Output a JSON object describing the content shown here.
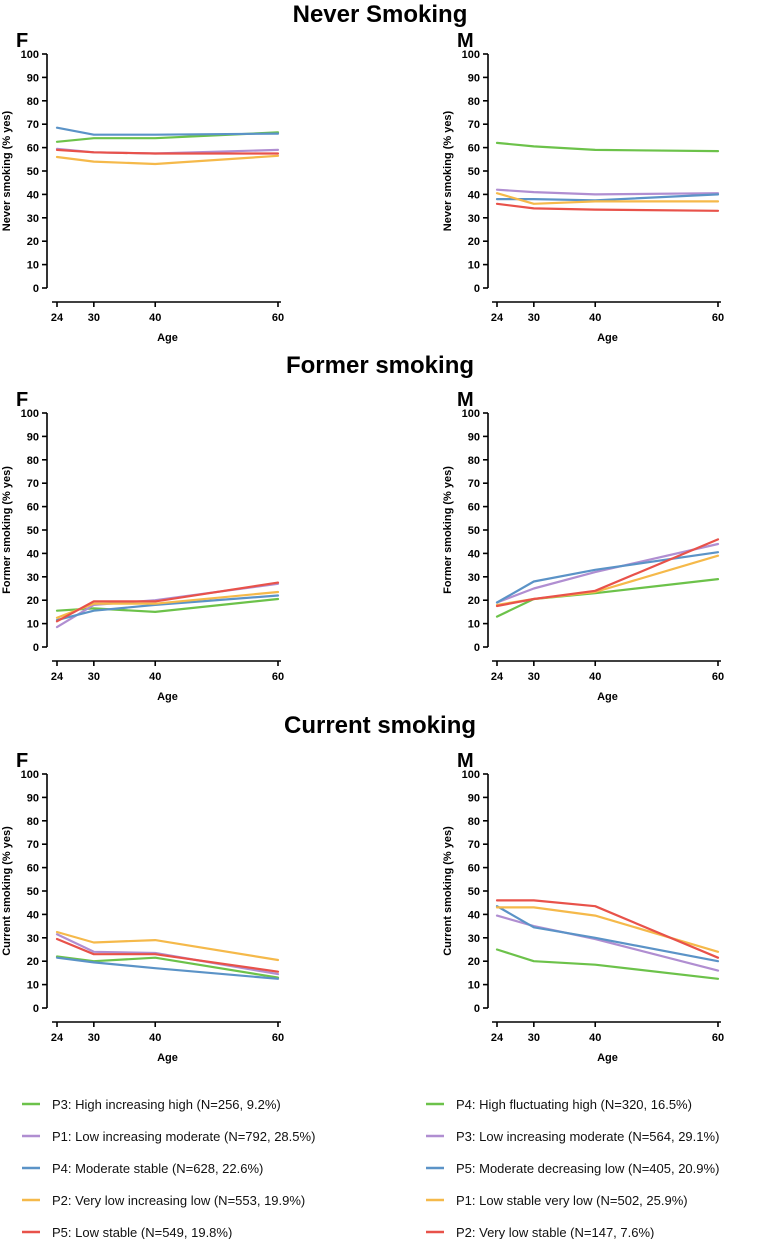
{
  "colors": {
    "green": "#6cc24a",
    "purple": "#b08ed1",
    "blue": "#5b93c7",
    "orange": "#f5b94a",
    "red": "#e8524a"
  },
  "sections": [
    {
      "title": "Never Smoking"
    },
    {
      "title": "Former smoking"
    },
    {
      "title": "Current smoking"
    }
  ],
  "legend": {
    "F": [
      {
        "label": "P3: High increasing high (N=256, 9.2%)",
        "color": "green"
      },
      {
        "label": "P1: Low increasing moderate (N=792, 28.5%)",
        "color": "purple"
      },
      {
        "label": "P4: Moderate stable (N=628, 22.6%)",
        "color": "blue"
      },
      {
        "label": "P2: Very low increasing low (N=553, 19.9%)",
        "color": "orange"
      },
      {
        "label": "P5: Low stable (N=549, 19.8%)",
        "color": "red"
      }
    ],
    "M": [
      {
        "label": "P4: High fluctuating high (N=320, 16.5%)",
        "color": "green"
      },
      {
        "label": "P3: Low increasing moderate (N=564, 29.1%)",
        "color": "purple"
      },
      {
        "label": "P5: Moderate decreasing low (N=405, 20.9%)",
        "color": "blue"
      },
      {
        "label": "P1: Low stable very low (N=502, 25.9%)",
        "color": "orange"
      },
      {
        "label": "P2: Very low stable (N=147, 7.6%)",
        "color": "red"
      }
    ]
  },
  "chart_data": [
    {
      "type": "line",
      "section": "Never Smoking",
      "panel": "F",
      "x": [
        24,
        30,
        40,
        60
      ],
      "xlabel": "Age",
      "ylabel": "Never smoking (% yes)",
      "xticks": [
        24,
        30,
        40,
        60
      ],
      "ylim": [
        0,
        100
      ],
      "yticks": [
        0,
        10,
        20,
        30,
        40,
        50,
        60,
        70,
        80,
        90,
        100
      ],
      "series": [
        {
          "color": "green",
          "values": [
            62.5,
            64,
            64,
            66.5
          ]
        },
        {
          "color": "purple",
          "values": [
            59.5,
            58,
            57.5,
            59
          ]
        },
        {
          "color": "blue",
          "values": [
            68.5,
            65.5,
            65.5,
            66
          ]
        },
        {
          "color": "orange",
          "values": [
            56,
            54,
            53,
            56.5
          ]
        },
        {
          "color": "red",
          "values": [
            59,
            58,
            57.5,
            57.5
          ]
        }
      ]
    },
    {
      "type": "line",
      "section": "Never Smoking",
      "panel": "M",
      "x": [
        24,
        30,
        40,
        60
      ],
      "xlabel": "Age",
      "ylabel": "Never smoking (% yes)",
      "xticks": [
        24,
        30,
        40,
        60
      ],
      "ylim": [
        0,
        100
      ],
      "yticks": [
        0,
        10,
        20,
        30,
        40,
        50,
        60,
        70,
        80,
        90,
        100
      ],
      "series": [
        {
          "color": "green",
          "values": [
            62,
            60.5,
            59,
            58.5
          ]
        },
        {
          "color": "purple",
          "values": [
            42,
            41,
            40,
            40.5
          ]
        },
        {
          "color": "blue",
          "values": [
            38,
            38,
            37.5,
            40
          ]
        },
        {
          "color": "orange",
          "values": [
            40.5,
            36,
            37,
            37
          ]
        },
        {
          "color": "red",
          "values": [
            36,
            34,
            33.5,
            33
          ]
        }
      ]
    },
    {
      "type": "line",
      "section": "Former smoking",
      "panel": "F",
      "x": [
        24,
        30,
        40,
        60
      ],
      "xlabel": "Age",
      "ylabel": "Former smoking (% yes)",
      "xticks": [
        24,
        30,
        40,
        60
      ],
      "ylim": [
        0,
        100
      ],
      "yticks": [
        0,
        10,
        20,
        30,
        40,
        50,
        60,
        70,
        80,
        90,
        100
      ],
      "series": [
        {
          "color": "green",
          "values": [
            15.5,
            16.5,
            15,
            20.5
          ]
        },
        {
          "color": "purple",
          "values": [
            8.5,
            18,
            20,
            27
          ]
        },
        {
          "color": "blue",
          "values": [
            11.5,
            15.5,
            18,
            22
          ]
        },
        {
          "color": "orange",
          "values": [
            12.5,
            18.5,
            18.5,
            23.5
          ]
        },
        {
          "color": "red",
          "values": [
            11,
            19.5,
            19.5,
            27.5
          ]
        }
      ]
    },
    {
      "type": "line",
      "section": "Former smoking",
      "panel": "M",
      "x": [
        24,
        30,
        40,
        60
      ],
      "xlabel": "Age",
      "ylabel": "Former smoking (% yes)",
      "xticks": [
        24,
        30,
        40,
        60
      ],
      "ylim": [
        0,
        100
      ],
      "yticks": [
        0,
        10,
        20,
        30,
        40,
        50,
        60,
        70,
        80,
        90,
        100
      ],
      "series": [
        {
          "color": "green",
          "values": [
            13,
            20.5,
            23,
            29
          ]
        },
        {
          "color": "purple",
          "values": [
            19,
            25,
            32,
            44
          ]
        },
        {
          "color": "blue",
          "values": [
            19,
            28,
            33,
            40.5
          ]
        },
        {
          "color": "orange",
          "values": [
            18,
            20.5,
            23.5,
            39
          ]
        },
        {
          "color": "red",
          "values": [
            17.5,
            20.5,
            24,
            46
          ]
        }
      ]
    },
    {
      "type": "line",
      "section": "Current smoking",
      "panel": "F",
      "x": [
        24,
        30,
        40,
        60
      ],
      "xlabel": "Age",
      "ylabel": "Current smoking (% yes)",
      "xticks": [
        24,
        30,
        40,
        60
      ],
      "ylim": [
        0,
        100
      ],
      "yticks": [
        0,
        10,
        20,
        30,
        40,
        50,
        60,
        70,
        80,
        90,
        100
      ],
      "series": [
        {
          "color": "green",
          "values": [
            22,
            20,
            21.5,
            13
          ]
        },
        {
          "color": "purple",
          "values": [
            31.5,
            24,
            23.5,
            14.5
          ]
        },
        {
          "color": "blue",
          "values": [
            21.5,
            19.5,
            17,
            12.5
          ]
        },
        {
          "color": "orange",
          "values": [
            32.5,
            28,
            29,
            20.5
          ]
        },
        {
          "color": "red",
          "values": [
            29.5,
            23,
            23,
            15.5
          ]
        }
      ]
    },
    {
      "type": "line",
      "section": "Current smoking",
      "panel": "M",
      "x": [
        24,
        30,
        40,
        60
      ],
      "xlabel": "Age",
      "ylabel": "Current smoking (% yes)",
      "xticks": [
        24,
        30,
        40,
        60
      ],
      "ylim": [
        0,
        100
      ],
      "yticks": [
        0,
        10,
        20,
        30,
        40,
        50,
        60,
        70,
        80,
        90,
        100
      ],
      "series": [
        {
          "color": "green",
          "values": [
            25,
            20,
            18.5,
            12.5
          ]
        },
        {
          "color": "purple",
          "values": [
            39.5,
            35,
            29.5,
            16
          ]
        },
        {
          "color": "blue",
          "values": [
            43.5,
            34.5,
            30,
            20
          ]
        },
        {
          "color": "orange",
          "values": [
            43,
            43,
            39.5,
            24
          ]
        },
        {
          "color": "red",
          "values": [
            46,
            46,
            43.5,
            21.5
          ]
        }
      ]
    }
  ]
}
